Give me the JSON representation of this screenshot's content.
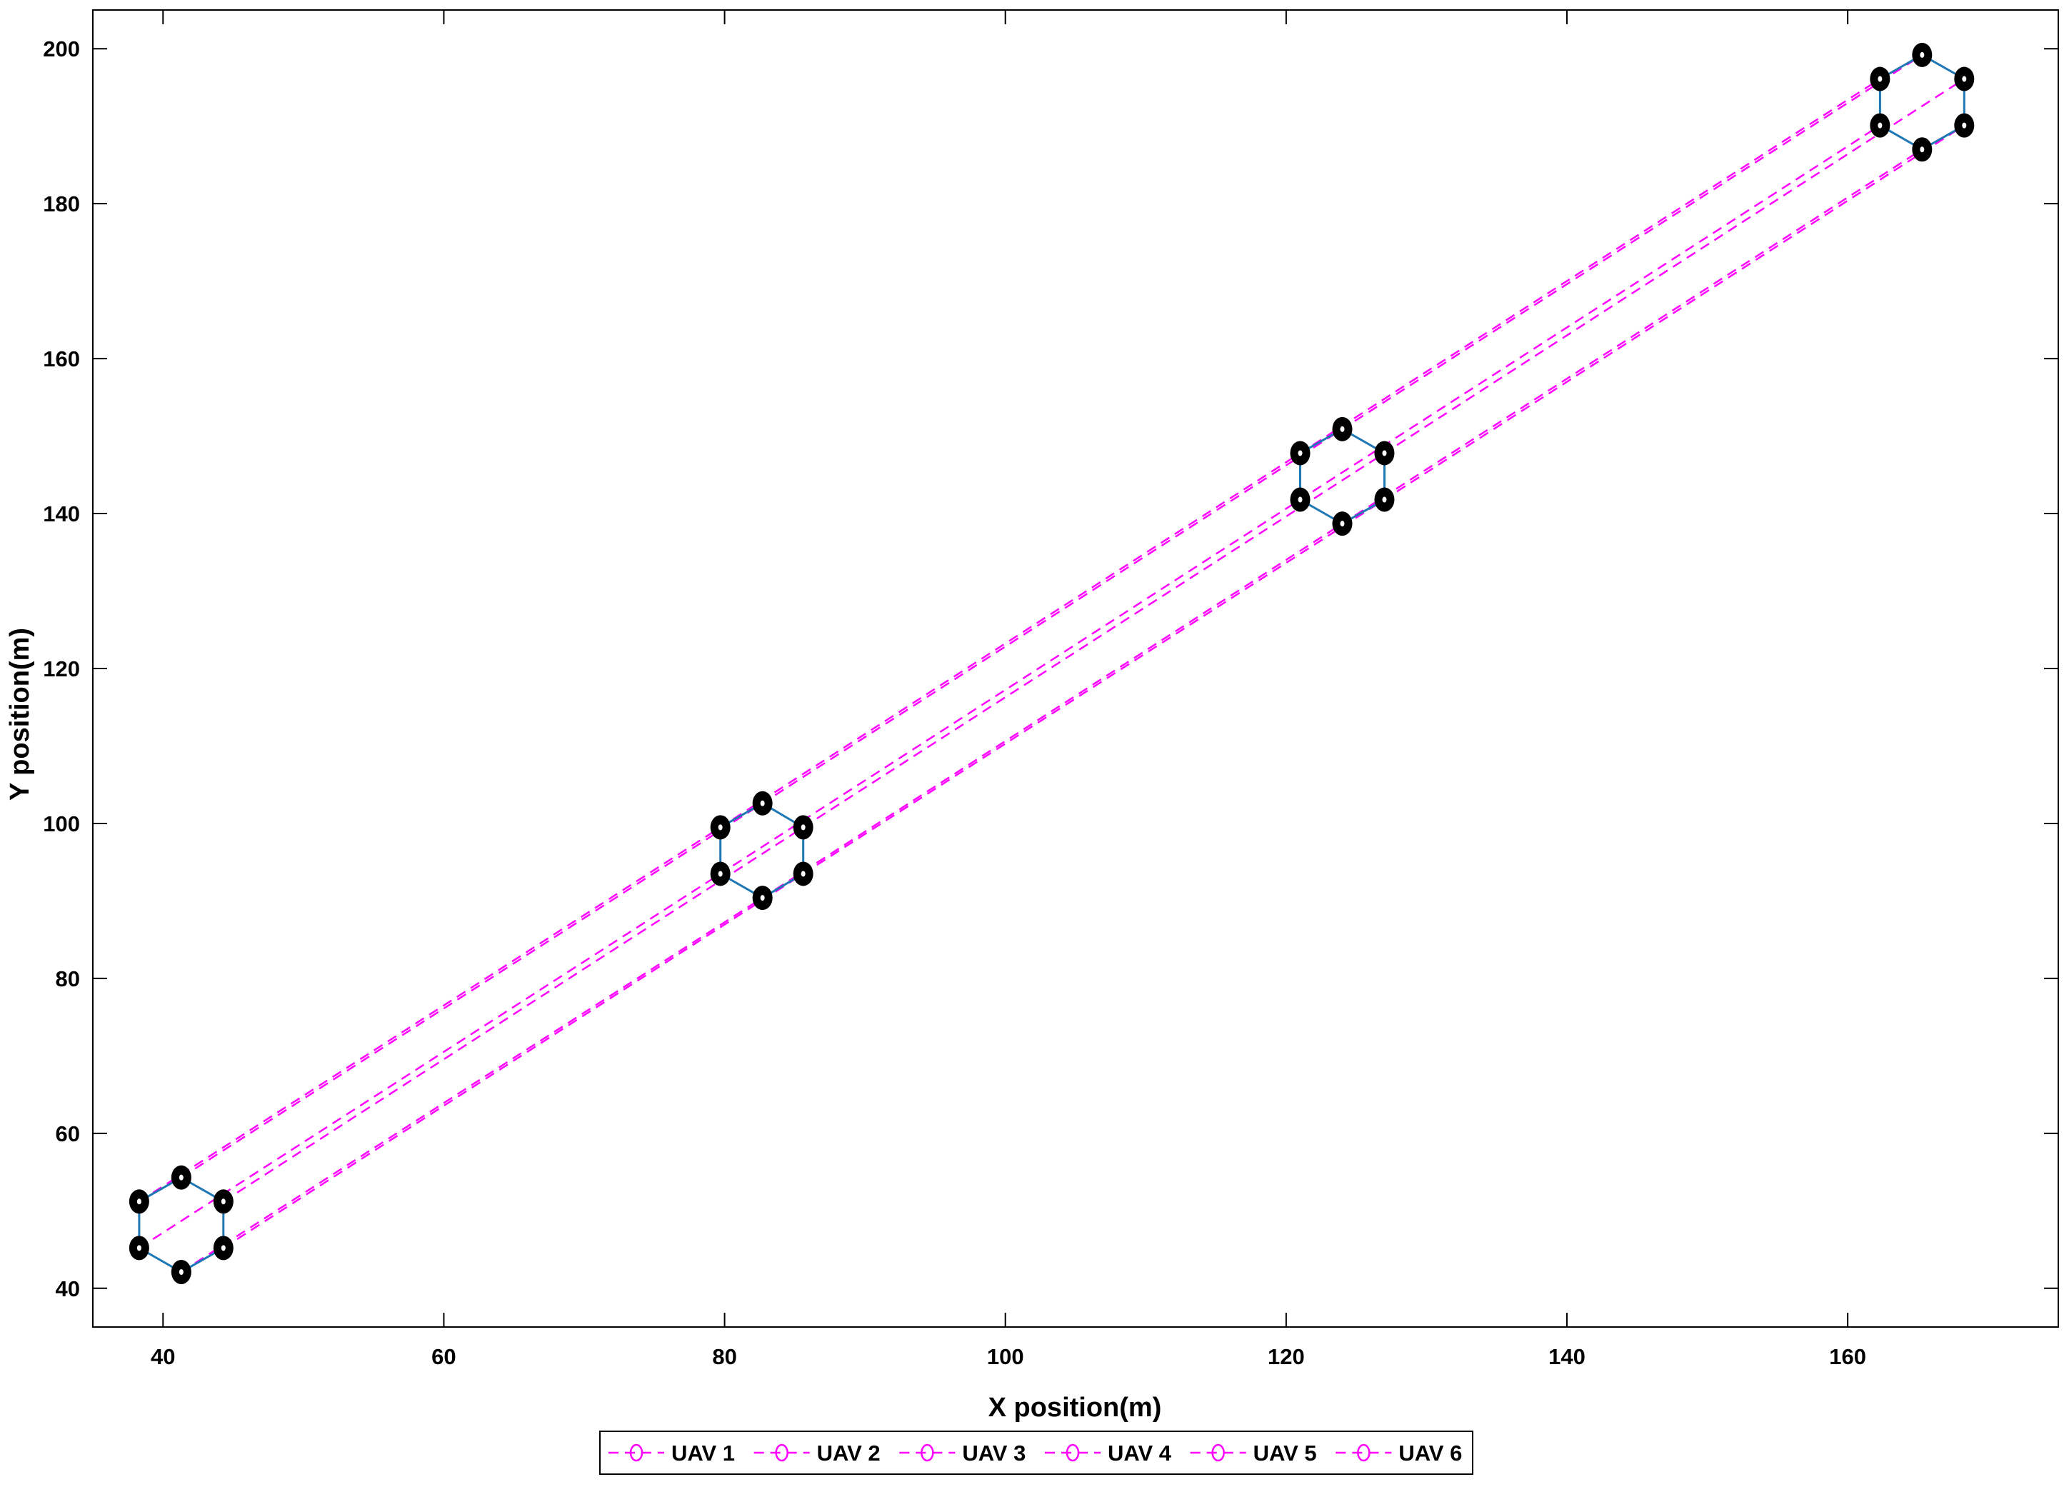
{
  "chart_data": {
    "type": "line",
    "xlabel": "X position(m)",
    "ylabel": "Y position(m)",
    "xlim": [
      35,
      175
    ],
    "ylim": [
      35,
      205
    ],
    "xticks": [
      40,
      60,
      80,
      100,
      120,
      140,
      160
    ],
    "yticks": [
      40,
      60,
      80,
      100,
      120,
      140,
      160,
      180,
      200
    ],
    "grid": false,
    "legend_position": "bottom-center",
    "legend_orientation": "horizontal",
    "colors": {
      "trajectory": "#ff00ff",
      "formation_link": "#1f77b4",
      "marker": "#000000",
      "axes": "#000000"
    },
    "series": [
      {
        "name": "UAV 1",
        "x": [
          41.3,
          82.7,
          124.0,
          165.3
        ],
        "y": [
          54.3,
          102.6,
          150.9,
          199.2
        ]
      },
      {
        "name": "UAV 2",
        "x": [
          44.3,
          85.6,
          127.0,
          168.3
        ],
        "y": [
          51.2,
          99.5,
          147.8,
          196.1
        ]
      },
      {
        "name": "UAV 3",
        "x": [
          44.3,
          85.6,
          127.0,
          168.3
        ],
        "y": [
          45.2,
          93.5,
          141.8,
          190.1
        ]
      },
      {
        "name": "UAV 4",
        "x": [
          41.3,
          82.7,
          124.0,
          165.3
        ],
        "y": [
          42.1,
          90.4,
          138.7,
          187.0
        ]
      },
      {
        "name": "UAV 5",
        "x": [
          38.3,
          79.7,
          121.0,
          162.3
        ],
        "y": [
          45.2,
          93.5,
          141.8,
          190.1
        ]
      },
      {
        "name": "UAV 6",
        "x": [
          38.3,
          79.7,
          121.0,
          162.3
        ],
        "y": [
          51.2,
          99.5,
          147.8,
          196.1
        ]
      }
    ]
  }
}
